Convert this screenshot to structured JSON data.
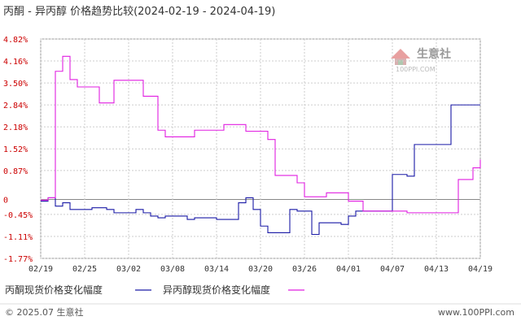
{
  "title": "丙酮 - 异丙醇 价格趋势比较(2024-02-19 - 2024-04-19)",
  "watermark": {
    "text": "生意社",
    "sub": "100PPI.COM"
  },
  "footer": {
    "left": "© 2025.07 生意社",
    "right": "www.100PPI.com"
  },
  "colors": {
    "acetone": "#1a1aa6",
    "ipa": "#e11ee1",
    "axis": "#cc0000",
    "grid": "#cccccc"
  },
  "chart_data": {
    "type": "line",
    "title": "丙酮 - 异丙醇 价格趋势比较(2024-02-19 - 2024-04-19)",
    "xlabel": "",
    "ylabel": "",
    "y_unit": "%",
    "ylim": [
      -1.77,
      4.82
    ],
    "y_ticks": [
      4.82,
      4.16,
      3.5,
      2.84,
      2.18,
      1.52,
      0.87,
      0,
      -0.45,
      -1.11,
      -1.77
    ],
    "y_tick_labels": [
      "4.82%",
      "4.16%",
      "3.50%",
      "2.84%",
      "2.18%",
      "1.52%",
      "0.87%",
      "0",
      "-0.45%",
      "-1.11%",
      "-1.77%"
    ],
    "x_ticks": [
      "02/19",
      "02/25",
      "03/02",
      "03/08",
      "03/14",
      "03/20",
      "03/26",
      "04/01",
      "04/07",
      "04/13",
      "04/19"
    ],
    "x_range_days": 60,
    "grid": true,
    "legend_position": "bottom",
    "series": [
      {
        "name": "丙酮现货价格变化幅度",
        "color": "#1a1aa6",
        "points": [
          [
            0,
            -0.05
          ],
          [
            1,
            0.05
          ],
          [
            2,
            -0.2
          ],
          [
            3,
            -0.1
          ],
          [
            4,
            -0.3
          ],
          [
            5,
            -0.3
          ],
          [
            6,
            -0.3
          ],
          [
            7,
            -0.25
          ],
          [
            8,
            -0.25
          ],
          [
            9,
            -0.3
          ],
          [
            10,
            -0.4
          ],
          [
            11,
            -0.4
          ],
          [
            12,
            -0.4
          ],
          [
            13,
            -0.3
          ],
          [
            14,
            -0.4
          ],
          [
            15,
            -0.5
          ],
          [
            16,
            -0.55
          ],
          [
            17,
            -0.5
          ],
          [
            18,
            -0.5
          ],
          [
            19,
            -0.5
          ],
          [
            20,
            -0.6
          ],
          [
            21,
            -0.55
          ],
          [
            22,
            -0.55
          ],
          [
            23,
            -0.55
          ],
          [
            24,
            -0.6
          ],
          [
            25,
            -0.6
          ],
          [
            26,
            -0.6
          ],
          [
            27,
            -0.1
          ],
          [
            28,
            0.05
          ],
          [
            29,
            -0.3
          ],
          [
            30,
            -0.8
          ],
          [
            31,
            -1.0
          ],
          [
            32,
            -1.0
          ],
          [
            33,
            -1.0
          ],
          [
            34,
            -0.3
          ],
          [
            35,
            -0.35
          ],
          [
            36,
            -0.35
          ],
          [
            37,
            -1.05
          ],
          [
            38,
            -0.7
          ],
          [
            39,
            -0.7
          ],
          [
            40,
            -0.7
          ],
          [
            41,
            -0.75
          ],
          [
            42,
            -0.5
          ],
          [
            43,
            -0.35
          ],
          [
            44,
            -0.35
          ],
          [
            45,
            -0.35
          ],
          [
            46,
            -0.35
          ],
          [
            47,
            -0.35
          ],
          [
            48,
            0.75
          ],
          [
            49,
            0.75
          ],
          [
            50,
            0.7
          ],
          [
            51,
            1.65
          ],
          [
            52,
            1.65
          ],
          [
            53,
            1.65
          ],
          [
            54,
            1.65
          ],
          [
            55,
            1.65
          ],
          [
            56,
            2.84
          ],
          [
            57,
            2.84
          ],
          [
            58,
            2.84
          ],
          [
            59,
            2.84
          ],
          [
            60,
            2.84
          ]
        ]
      },
      {
        "name": "异丙醇现货价格变化幅度",
        "color": "#e11ee1",
        "points": [
          [
            0,
            -0.02
          ],
          [
            1,
            0.05
          ],
          [
            2,
            3.85
          ],
          [
            3,
            4.3
          ],
          [
            4,
            3.6
          ],
          [
            5,
            3.38
          ],
          [
            6,
            3.38
          ],
          [
            7,
            3.38
          ],
          [
            8,
            2.9
          ],
          [
            9,
            2.9
          ],
          [
            10,
            3.58
          ],
          [
            11,
            3.58
          ],
          [
            12,
            3.58
          ],
          [
            13,
            3.58
          ],
          [
            14,
            3.1
          ],
          [
            15,
            3.1
          ],
          [
            16,
            2.08
          ],
          [
            17,
            1.88
          ],
          [
            18,
            1.88
          ],
          [
            19,
            1.88
          ],
          [
            20,
            1.88
          ],
          [
            21,
            2.08
          ],
          [
            22,
            2.08
          ],
          [
            23,
            2.08
          ],
          [
            24,
            2.08
          ],
          [
            25,
            2.25
          ],
          [
            26,
            2.25
          ],
          [
            27,
            2.25
          ],
          [
            28,
            2.05
          ],
          [
            29,
            2.05
          ],
          [
            30,
            2.05
          ],
          [
            31,
            1.8
          ],
          [
            32,
            0.72
          ],
          [
            33,
            0.72
          ],
          [
            34,
            0.72
          ],
          [
            35,
            0.5
          ],
          [
            36,
            0.08
          ],
          [
            37,
            0.08
          ],
          [
            38,
            0.08
          ],
          [
            39,
            0.2
          ],
          [
            40,
            0.2
          ],
          [
            41,
            0.2
          ],
          [
            42,
            -0.05
          ],
          [
            43,
            -0.05
          ],
          [
            44,
            -0.35
          ],
          [
            45,
            -0.35
          ],
          [
            46,
            -0.35
          ],
          [
            47,
            -0.35
          ],
          [
            48,
            -0.35
          ],
          [
            49,
            -0.35
          ],
          [
            50,
            -0.4
          ],
          [
            51,
            -0.4
          ],
          [
            52,
            -0.4
          ],
          [
            53,
            -0.4
          ],
          [
            54,
            -0.4
          ],
          [
            55,
            -0.4
          ],
          [
            56,
            -0.4
          ],
          [
            57,
            0.6
          ],
          [
            58,
            0.6
          ],
          [
            59,
            0.95
          ],
          [
            60,
            1.2
          ]
        ]
      }
    ]
  }
}
